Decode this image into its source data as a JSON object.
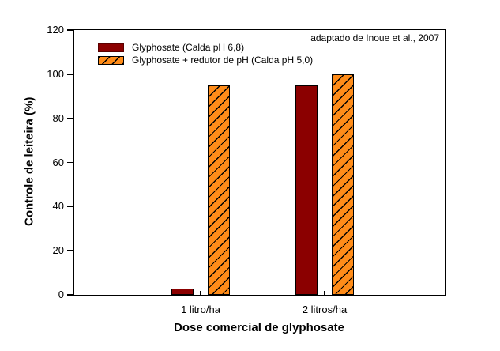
{
  "chart_data": {
    "type": "bar",
    "categories": [
      "1 litro/ha",
      "2 litros/ha"
    ],
    "series": [
      {
        "name": "Glyphosate (Calda pH 6,8)",
        "values": [
          3,
          95
        ],
        "color": "#8B0000",
        "pattern": "solid"
      },
      {
        "name": "Glyphosate + redutor de pH (Calda pH 5,0)",
        "values": [
          95,
          100
        ],
        "color": "#FF8C19",
        "pattern": "diagonal-hatch"
      }
    ],
    "xlabel": "Dose comercial de glyphosate",
    "ylabel": "Controle de leiteira (%)",
    "ylim": [
      0,
      120
    ],
    "yticks": [
      0,
      20,
      40,
      60,
      80,
      100,
      120
    ],
    "annotation": "adaptado de Inoue et al., 2007",
    "legend_position": "top-left",
    "grid": false,
    "bar_edge_color": "#000000",
    "background_color": "#FFFFFF"
  }
}
